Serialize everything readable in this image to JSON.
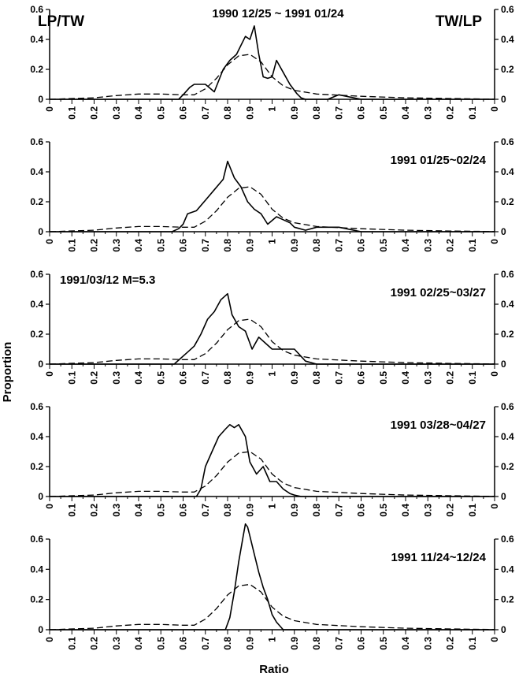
{
  "corner_labels": {
    "left": "LP/TW",
    "right": "TW/LP"
  },
  "axis_labels": {
    "x": "Ratio",
    "y": "Proportion"
  },
  "chart_data": [
    {
      "type": "line",
      "title": "1990 12/25 ~ 1991 01/24",
      "annotation": "",
      "ylim": [
        0,
        0.6
      ],
      "y_ticks": [
        0,
        0.2,
        0.4,
        0.6
      ],
      "x_tick_labels": [
        "0",
        "0.1",
        "0.2",
        "0.3",
        "0.4",
        "0.5",
        "0.6",
        "0.7",
        "0.8",
        "0.9",
        "1",
        "0.9",
        "0.8",
        "0.7",
        "0.6",
        "0.5",
        "0.4",
        "0.3",
        "0.2",
        "0.1",
        "0"
      ],
      "series": [
        {
          "style": "solid",
          "x": [
            0,
            5.8,
            6.0,
            6.3,
            6.5,
            6.8,
            7.0,
            7.4,
            7.8,
            8.1,
            8.4,
            8.6,
            8.8,
            9.0,
            9.2,
            9.4,
            9.6,
            9.8,
            10.0,
            10.2,
            10.5,
            10.8,
            11.1,
            11.3,
            11.5,
            12.5,
            13.0,
            14.0,
            21
          ],
          "y": [
            0,
            0,
            0.03,
            0.08,
            0.1,
            0.1,
            0.1,
            0.05,
            0.2,
            0.26,
            0.3,
            0.36,
            0.42,
            0.4,
            0.49,
            0.3,
            0.15,
            0.14,
            0.15,
            0.26,
            0.18,
            0.1,
            0.04,
            0.01,
            0,
            0,
            0.03,
            0,
            0
          ]
        },
        {
          "style": "dashed",
          "x": [
            0,
            2,
            3,
            4,
            5,
            6,
            6.5,
            7,
            7.5,
            8,
            8.5,
            9,
            9.5,
            10,
            10.5,
            11,
            12,
            14,
            16,
            18,
            20,
            21
          ],
          "y": [
            0,
            0.01,
            0.025,
            0.035,
            0.035,
            0.03,
            0.03,
            0.07,
            0.14,
            0.23,
            0.29,
            0.3,
            0.25,
            0.15,
            0.09,
            0.06,
            0.035,
            0.02,
            0.01,
            0.005,
            0.001,
            0
          ]
        }
      ]
    },
    {
      "type": "line",
      "title": "1991 01/25~02/24",
      "annotation": "",
      "ylim": [
        0,
        0.6
      ],
      "y_ticks": [
        0,
        0.2,
        0.4,
        0.6
      ],
      "x_tick_labels": [
        "0",
        "0.1",
        "0.2",
        "0.3",
        "0.4",
        "0.5",
        "0.6",
        "0.7",
        "0.8",
        "0.9",
        "1",
        "0.9",
        "0.8",
        "0.7",
        "0.6",
        "0.5",
        "0.4",
        "0.3",
        "0.2",
        "0.1",
        "0"
      ],
      "series": [
        {
          "style": "solid",
          "x": [
            0,
            5.5,
            5.8,
            6.0,
            6.2,
            6.6,
            7.0,
            7.4,
            7.8,
            8.0,
            8.3,
            8.6,
            8.9,
            9.2,
            9.5,
            9.8,
            10.2,
            10.5,
            10.8,
            11.0,
            11.5,
            12,
            13,
            14,
            21
          ],
          "y": [
            0,
            0,
            0.02,
            0.05,
            0.12,
            0.14,
            0.21,
            0.28,
            0.35,
            0.47,
            0.36,
            0.3,
            0.2,
            0.15,
            0.12,
            0.05,
            0.1,
            0.08,
            0.06,
            0.03,
            0.01,
            0.03,
            0.03,
            0,
            0
          ]
        },
        {
          "style": "dashed",
          "x": [
            0,
            2,
            3,
            4,
            5,
            6,
            6.5,
            7,
            7.5,
            8,
            8.5,
            9,
            9.5,
            10,
            10.5,
            11,
            12,
            14,
            16,
            18,
            20,
            21
          ],
          "y": [
            0,
            0.01,
            0.025,
            0.035,
            0.035,
            0.03,
            0.03,
            0.07,
            0.14,
            0.23,
            0.29,
            0.3,
            0.25,
            0.15,
            0.09,
            0.06,
            0.035,
            0.02,
            0.01,
            0.005,
            0.001,
            0
          ]
        }
      ]
    },
    {
      "type": "line",
      "title": "1991 02/25~03/27",
      "annotation": "1991/03/12 M=5.3",
      "ylim": [
        0,
        0.6
      ],
      "y_ticks": [
        0,
        0.2,
        0.4,
        0.6
      ],
      "x_tick_labels": [
        "0",
        "0.1",
        "0.2",
        "0.3",
        "0.4",
        "0.5",
        "0.6",
        "0.7",
        "0.8",
        "0.9",
        "1",
        "0.9",
        "0.8",
        "0.7",
        "0.6",
        "0.5",
        "0.4",
        "0.3",
        "0.2",
        "0.1",
        "0"
      ],
      "series": [
        {
          "style": "solid",
          "x": [
            0,
            5.6,
            5.9,
            6.2,
            6.5,
            6.8,
            7.1,
            7.4,
            7.7,
            8.0,
            8.2,
            8.5,
            8.8,
            9.1,
            9.4,
            9.7,
            10.0,
            10.5,
            11.0,
            11.5,
            12.0,
            21
          ],
          "y": [
            0,
            0,
            0.04,
            0.08,
            0.12,
            0.2,
            0.3,
            0.35,
            0.43,
            0.47,
            0.33,
            0.25,
            0.22,
            0.1,
            0.18,
            0.14,
            0.1,
            0.1,
            0.1,
            0.02,
            0,
            0
          ]
        },
        {
          "style": "dashed",
          "x": [
            0,
            2,
            3,
            4,
            5,
            6,
            6.5,
            7,
            7.5,
            8,
            8.5,
            9,
            9.5,
            10,
            10.5,
            11,
            12,
            14,
            16,
            18,
            20,
            21
          ],
          "y": [
            0,
            0.01,
            0.025,
            0.035,
            0.035,
            0.03,
            0.03,
            0.07,
            0.14,
            0.23,
            0.29,
            0.3,
            0.25,
            0.15,
            0.09,
            0.06,
            0.035,
            0.02,
            0.01,
            0.005,
            0.001,
            0
          ]
        }
      ]
    },
    {
      "type": "line",
      "title": "1991 03/28~04/27",
      "annotation": "",
      "ylim": [
        0,
        0.6
      ],
      "y_ticks": [
        0,
        0.2,
        0.4,
        0.6
      ],
      "x_tick_labels": [
        "0",
        "0.1",
        "0.2",
        "0.3",
        "0.4",
        "0.5",
        "0.6",
        "0.7",
        "0.8",
        "0.9",
        "1",
        "0.9",
        "0.8",
        "0.7",
        "0.6",
        "0.5",
        "0.4",
        "0.3",
        "0.2",
        "0.1",
        "0"
      ],
      "series": [
        {
          "style": "solid",
          "x": [
            0,
            6.6,
            6.8,
            7.0,
            7.3,
            7.6,
            7.9,
            8.1,
            8.3,
            8.5,
            8.8,
            9.0,
            9.3,
            9.6,
            9.9,
            10.2,
            10.5,
            10.8,
            11.0,
            11.3,
            21
          ],
          "y": [
            0,
            0,
            0.05,
            0.2,
            0.3,
            0.4,
            0.45,
            0.48,
            0.46,
            0.48,
            0.4,
            0.23,
            0.15,
            0.2,
            0.1,
            0.1,
            0.05,
            0.02,
            0.01,
            0,
            0
          ]
        },
        {
          "style": "dashed",
          "x": [
            0,
            2,
            3,
            4,
            5,
            6,
            6.5,
            7,
            7.5,
            8,
            8.5,
            9,
            9.5,
            10,
            10.5,
            11,
            12,
            14,
            16,
            18,
            20,
            21
          ],
          "y": [
            0,
            0.01,
            0.025,
            0.035,
            0.035,
            0.03,
            0.03,
            0.07,
            0.14,
            0.23,
            0.29,
            0.3,
            0.25,
            0.15,
            0.09,
            0.06,
            0.035,
            0.02,
            0.01,
            0.005,
            0.001,
            0
          ]
        }
      ]
    },
    {
      "type": "line",
      "title": "1991 11/24~12/24",
      "annotation": "",
      "ylim": [
        0,
        0.6
      ],
      "y_ticks": [
        0,
        0.2,
        0.4,
        0.6
      ],
      "x_tick_labels": [
        "0",
        "0.1",
        "0.2",
        "0.3",
        "0.4",
        "0.5",
        "0.6",
        "0.7",
        "0.8",
        "0.9",
        "1",
        "0.9",
        "0.8",
        "0.7",
        "0.6",
        "0.5",
        "0.4",
        "0.3",
        "0.2",
        "0.1",
        "0"
      ],
      "series": [
        {
          "style": "solid",
          "x": [
            0,
            7.9,
            8.1,
            8.3,
            8.5,
            8.7,
            8.8,
            8.9,
            9.0,
            9.2,
            9.4,
            9.6,
            9.8,
            10.0,
            10.2,
            10.5,
            21
          ],
          "y": [
            0,
            0,
            0.08,
            0.25,
            0.45,
            0.62,
            0.7,
            0.68,
            0.62,
            0.5,
            0.38,
            0.28,
            0.2,
            0.1,
            0.05,
            0,
            0
          ]
        },
        {
          "style": "dashed",
          "x": [
            0,
            2,
            3,
            4,
            5,
            6,
            6.5,
            7,
            7.5,
            8,
            8.5,
            9,
            9.5,
            10,
            10.5,
            11,
            12,
            14,
            16,
            18,
            20,
            21
          ],
          "y": [
            0,
            0.01,
            0.025,
            0.035,
            0.035,
            0.03,
            0.03,
            0.07,
            0.14,
            0.23,
            0.29,
            0.3,
            0.25,
            0.15,
            0.09,
            0.06,
            0.035,
            0.02,
            0.01,
            0.005,
            0.001,
            0
          ]
        }
      ]
    }
  ]
}
